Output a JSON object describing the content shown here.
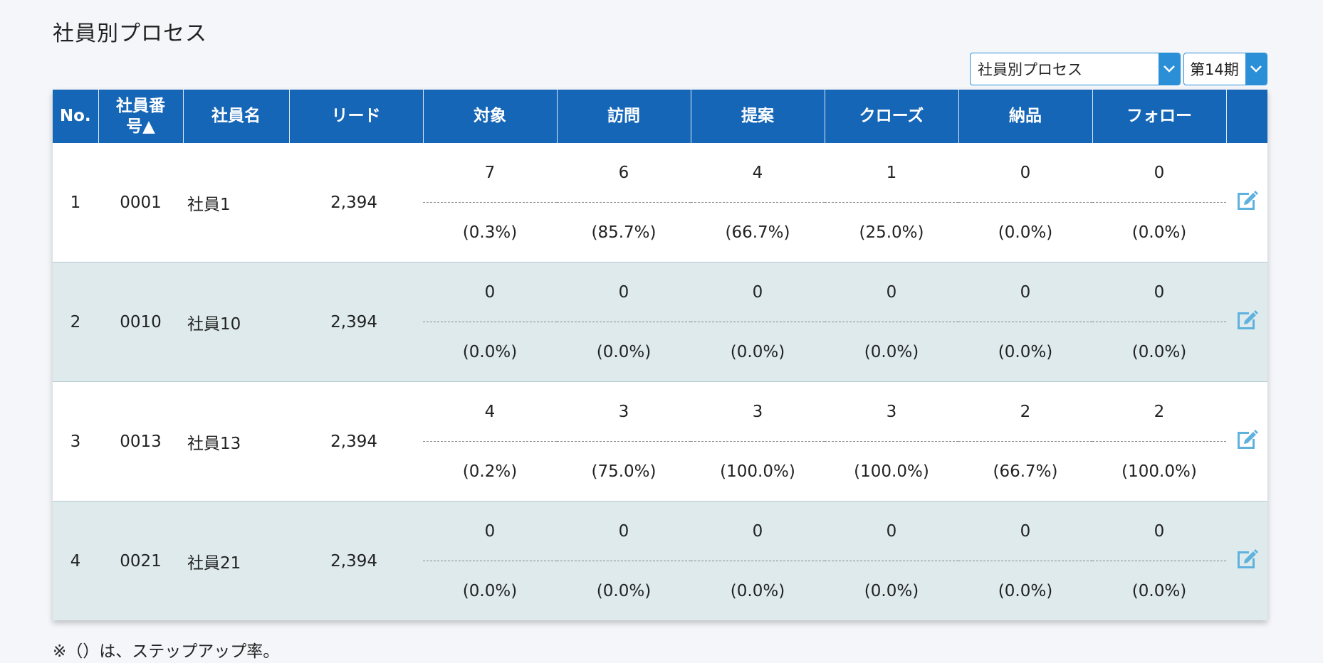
{
  "page": {
    "title": "社員別プロセス",
    "footnote": "※（）は、ステップアップ率。"
  },
  "controls": {
    "view_select": "社員別プロセス",
    "period_select": "第14期"
  },
  "table": {
    "headers": {
      "no": "No.",
      "emp_number": "社員番号▲",
      "emp_name": "社員名",
      "lead": "リード",
      "target": "対象",
      "visit": "訪問",
      "proposal": "提案",
      "close": "クローズ",
      "delivery": "納品",
      "follow": "フォロー"
    },
    "rows": [
      {
        "no": "1",
        "emp_number": "0001",
        "emp_name": "社員1",
        "lead": "2,394",
        "stages": [
          {
            "count": "7",
            "rate": "(0.3%)"
          },
          {
            "count": "6",
            "rate": "(85.7%)"
          },
          {
            "count": "4",
            "rate": "(66.7%)"
          },
          {
            "count": "1",
            "rate": "(25.0%)"
          },
          {
            "count": "0",
            "rate": "(0.0%)"
          },
          {
            "count": "0",
            "rate": "(0.0%)"
          }
        ]
      },
      {
        "no": "2",
        "emp_number": "0010",
        "emp_name": "社員10",
        "lead": "2,394",
        "stages": [
          {
            "count": "0",
            "rate": "(0.0%)"
          },
          {
            "count": "0",
            "rate": "(0.0%)"
          },
          {
            "count": "0",
            "rate": "(0.0%)"
          },
          {
            "count": "0",
            "rate": "(0.0%)"
          },
          {
            "count": "0",
            "rate": "(0.0%)"
          },
          {
            "count": "0",
            "rate": "(0.0%)"
          }
        ]
      },
      {
        "no": "3",
        "emp_number": "0013",
        "emp_name": "社員13",
        "lead": "2,394",
        "stages": [
          {
            "count": "4",
            "rate": "(0.2%)"
          },
          {
            "count": "3",
            "rate": "(75.0%)"
          },
          {
            "count": "3",
            "rate": "(100.0%)"
          },
          {
            "count": "3",
            "rate": "(100.0%)"
          },
          {
            "count": "2",
            "rate": "(66.7%)"
          },
          {
            "count": "2",
            "rate": "(100.0%)"
          }
        ]
      },
      {
        "no": "4",
        "emp_number": "0021",
        "emp_name": "社員21",
        "lead": "2,394",
        "stages": [
          {
            "count": "0",
            "rate": "(0.0%)"
          },
          {
            "count": "0",
            "rate": "(0.0%)"
          },
          {
            "count": "0",
            "rate": "(0.0%)"
          },
          {
            "count": "0",
            "rate": "(0.0%)"
          },
          {
            "count": "0",
            "rate": "(0.0%)"
          },
          {
            "count": "0",
            "rate": "(0.0%)"
          }
        ]
      }
    ]
  },
  "icons": {
    "edit": "edit-icon",
    "dropdown": "chevron-down-icon"
  },
  "colors": {
    "header_bg": "#1566b7",
    "accent": "#2a8fd6",
    "row_alt": "#deeaec",
    "edit_icon": "#5fb2de"
  }
}
